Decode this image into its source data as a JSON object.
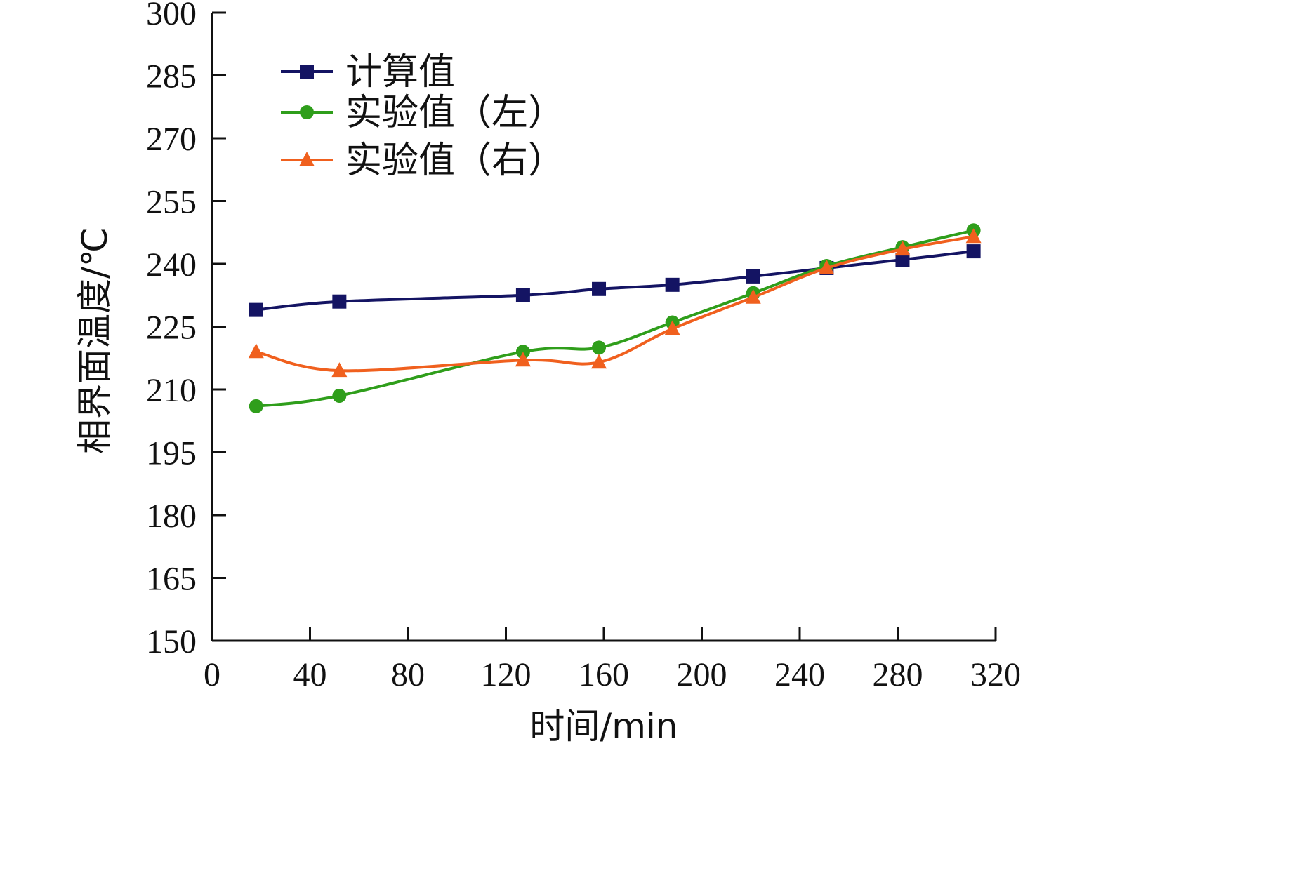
{
  "chart_data": {
    "type": "line",
    "xlabel": "时间/min",
    "ylabel": "相界面温度/℃",
    "xlim": [
      0,
      320
    ],
    "ylim": [
      150,
      300
    ],
    "x_ticks": [
      "0",
      "40",
      "80",
      "120",
      "160",
      "200",
      "240",
      "280",
      "320"
    ],
    "y_ticks": [
      "150",
      "165",
      "180",
      "195",
      "210",
      "225",
      "240",
      "255",
      "270",
      "285",
      "300"
    ],
    "grid": false,
    "legend_position": "top-left",
    "series": [
      {
        "name": "计算值",
        "color": "#141463",
        "marker": "square",
        "x": [
          18,
          52,
          127,
          158,
          188,
          221,
          251,
          282,
          311
        ],
        "y": [
          229,
          231,
          232.5,
          234,
          235,
          237,
          239,
          241,
          243
        ]
      },
      {
        "name": "实验值（左）",
        "color": "#2f9e1b",
        "marker": "circle",
        "x": [
          18,
          52,
          127,
          158,
          188,
          221,
          251,
          282,
          311
        ],
        "y": [
          206,
          208.5,
          219,
          220,
          226,
          233,
          239.5,
          244,
          248
        ]
      },
      {
        "name": "实验值（右）",
        "color": "#f0601e",
        "marker": "triangle",
        "x": [
          18,
          52,
          127,
          158,
          188,
          221,
          251,
          282,
          311
        ],
        "y": [
          219,
          214.5,
          217,
          216.5,
          224.5,
          232,
          239,
          243.5,
          246.5
        ]
      }
    ]
  }
}
